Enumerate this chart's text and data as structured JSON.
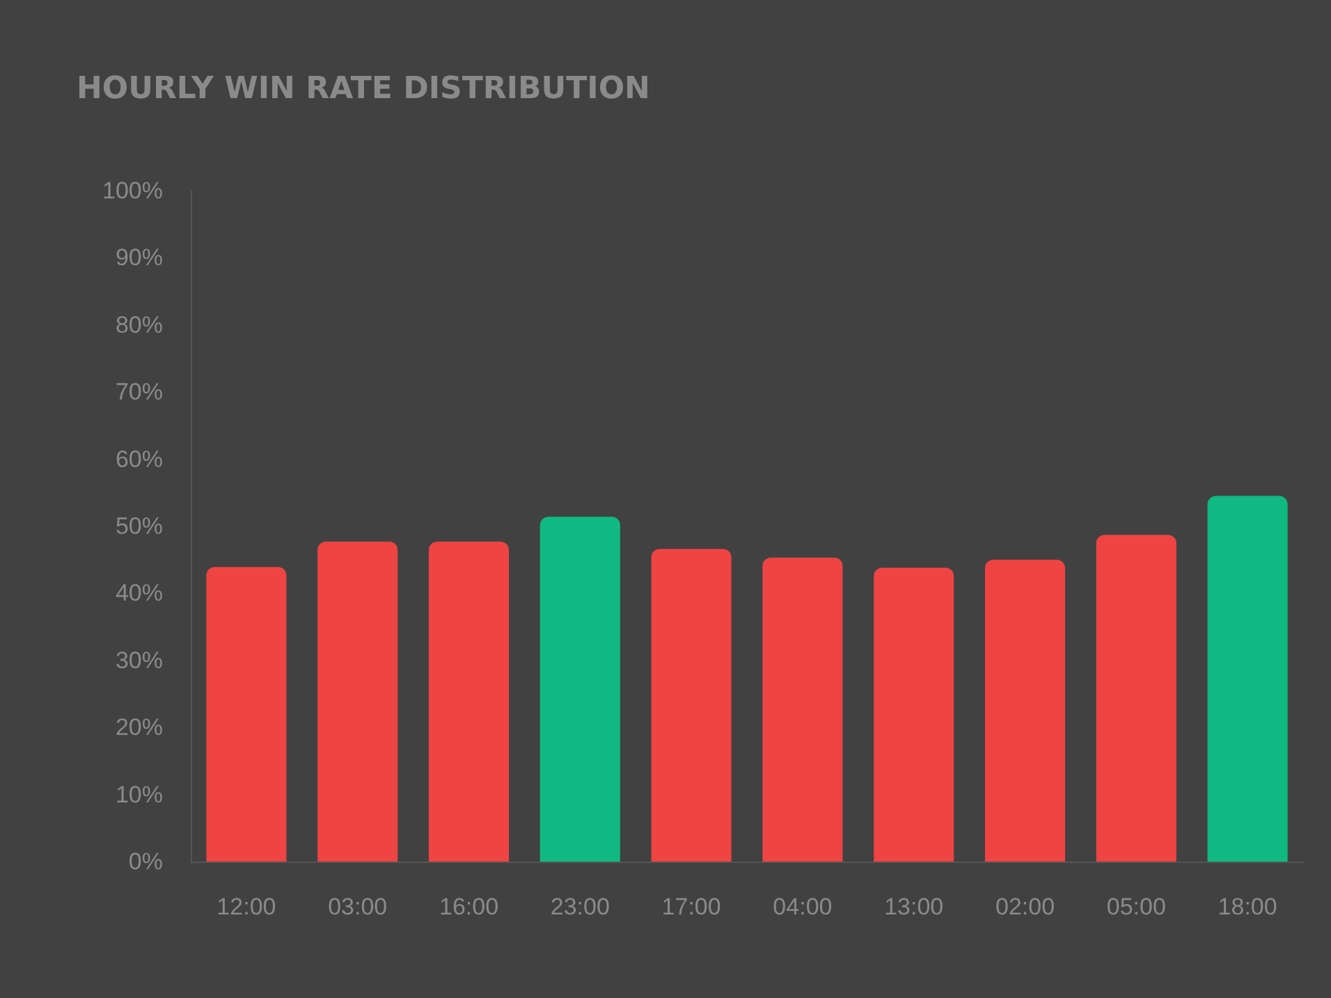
{
  "chart_data": {
    "type": "bar",
    "title": "HOURLY WIN RATE DISTRIBUTION",
    "categories": [
      "12:00",
      "03:00",
      "16:00",
      "23:00",
      "17:00",
      "04:00",
      "13:00",
      "02:00",
      "05:00",
      "18:00"
    ],
    "values": [
      43.9,
      47.7,
      47.7,
      51.4,
      46.6,
      45.3,
      43.8,
      45.0,
      48.7,
      54.5
    ],
    "colors": [
      "#ef4444",
      "#ef4444",
      "#ef4444",
      "#10b981",
      "#ef4444",
      "#ef4444",
      "#ef4444",
      "#ef4444",
      "#ef4444",
      "#10b981"
    ],
    "ylim": [
      0,
      100
    ],
    "yticks": [
      {
        "value": 0,
        "label": "0%"
      },
      {
        "value": 10,
        "label": "10%"
      },
      {
        "value": 20,
        "label": "20%"
      },
      {
        "value": 30,
        "label": "30%"
      },
      {
        "value": 40,
        "label": "40%"
      },
      {
        "value": 50,
        "label": "50%"
      },
      {
        "value": 60,
        "label": "60%"
      },
      {
        "value": 70,
        "label": "70%"
      },
      {
        "value": 80,
        "label": "80%"
      },
      {
        "value": 90,
        "label": "90%"
      },
      {
        "value": 100,
        "label": "100%"
      }
    ],
    "grid": false
  }
}
